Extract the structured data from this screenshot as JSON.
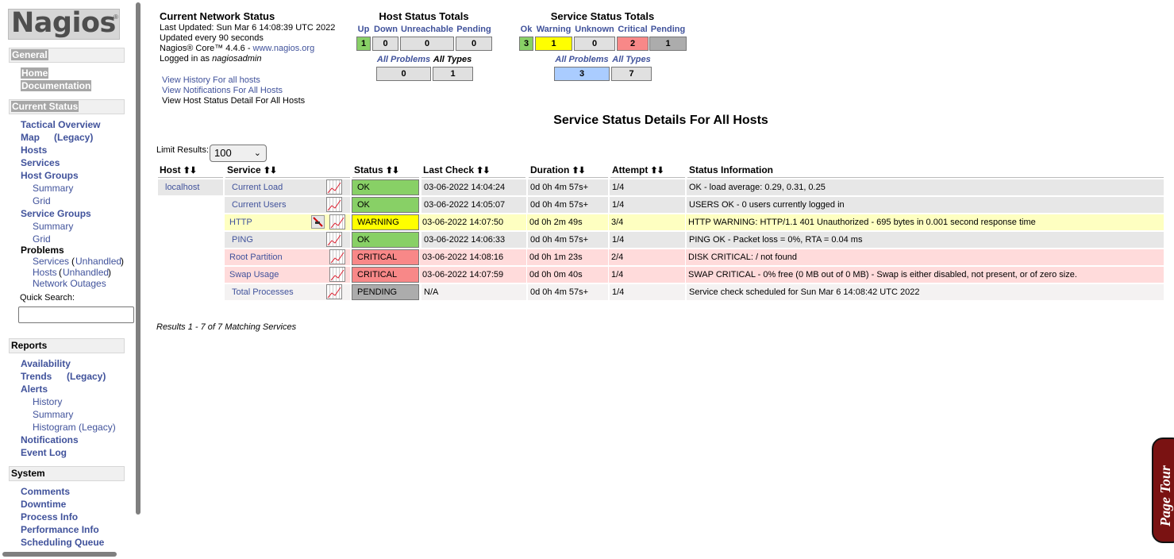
{
  "sidebar": {
    "logo": "Nagios",
    "logo_mark": "®",
    "general": {
      "heading": "General",
      "home": "Home",
      "documentation": "Documentation"
    },
    "current_status": {
      "heading": "Current Status",
      "tactical_overview": "Tactical Overview",
      "map": "Map",
      "map_legacy": "(Legacy)",
      "hosts": "Hosts",
      "services": "Services",
      "host_groups": "Host Groups",
      "hg_summary": "Summary",
      "hg_grid": "Grid",
      "service_groups": "Service Groups",
      "sg_summary": "Summary",
      "sg_grid": "Grid",
      "problems": "Problems",
      "prob_services": "Services",
      "prob_services_unhandled": "Unhandled",
      "prob_hosts": "Hosts",
      "prob_hosts_unhandled": "Unhandled",
      "network_outages": "Network Outages",
      "quick_search": "Quick Search:",
      "paren_open": "(",
      "paren_close": ")"
    },
    "reports": {
      "heading": "Reports",
      "availability": "Availability",
      "trends": "Trends",
      "trends_legacy": "(Legacy)",
      "alerts": "Alerts",
      "history": "History",
      "summary": "Summary",
      "histogram": "Histogram (Legacy)",
      "notifications": "Notifications",
      "event_log": "Event Log"
    },
    "system": {
      "heading": "System",
      "comments": "Comments",
      "downtime": "Downtime",
      "process_info": "Process Info",
      "performance_info": "Performance Info",
      "scheduling_queue": "Scheduling Queue"
    }
  },
  "network_status": {
    "title": "Current Network Status",
    "last_updated": "Last Updated: Sun Mar 6 14:08:39 UTC 2022",
    "update_interval": "Updated every 90 seconds",
    "version_prefix": "Nagios® Core™ 4.4.6 - ",
    "version_link": "www.nagios.org",
    "logged_prefix": "Logged in as ",
    "logged_user": "nagiosadmin",
    "links": [
      "View History For all hosts",
      "View Notifications For All Hosts",
      "View Host Status Detail For All Hosts"
    ]
  },
  "host_totals": {
    "title": "Host Status Totals",
    "headers": [
      "Up",
      "Down",
      "Unreachable",
      "Pending"
    ],
    "values": [
      "1",
      "0",
      "0",
      "0"
    ],
    "sub_headers": [
      "All Problems",
      "All Types"
    ],
    "sub_values": [
      "0",
      "1"
    ]
  },
  "service_totals": {
    "title": "Service Status Totals",
    "headers": [
      "Ok",
      "Warning",
      "Unknown",
      "Critical",
      "Pending"
    ],
    "values": [
      "3",
      "1",
      "0",
      "2",
      "1"
    ],
    "sub_headers": [
      "All Problems",
      "All Types"
    ],
    "sub_values": [
      "3",
      "7"
    ]
  },
  "colors": {
    "ok": "#88d066",
    "warning": "#ffff00",
    "critical": "#f88888",
    "pending": "#acacac",
    "row_even": "#f4f2f2",
    "row_odd": "#e7e7e7",
    "row_warning": "#feffc1",
    "row_critical": "#ffdbdb",
    "link": "#40529b"
  },
  "page_heading": "Service Status Details For All Hosts",
  "limit": {
    "label": "Limit Results:",
    "value": "100"
  },
  "table": {
    "headers": [
      "Host",
      "Service",
      "Status",
      "Last Check",
      "Duration",
      "Attempt",
      "Status Information"
    ],
    "rows": [
      {
        "host": "localhost",
        "service": "Current Load",
        "status": "OK",
        "last_check": "03-06-2022 14:04:24",
        "duration": "0d 0h 4m 57s+",
        "attempt": "1/4",
        "info": "OK - load average: 0.29, 0.31, 0.25"
      },
      {
        "host": "",
        "service": "Current Users",
        "status": "OK",
        "last_check": "03-06-2022 14:05:07",
        "duration": "0d 0h 4m 57s+",
        "attempt": "1/4",
        "info": "USERS OK - 0 users currently logged in"
      },
      {
        "host": "",
        "service": "HTTP",
        "status": "WARNING",
        "last_check": "03-06-2022 14:07:50",
        "duration": "0d 0h 2m 49s",
        "attempt": "3/4",
        "info": "HTTP WARNING: HTTP/1.1 401 Unauthorized - 695 bytes in 0.001 second response time"
      },
      {
        "host": "",
        "service": "PING",
        "status": "OK",
        "last_check": "03-06-2022 14:06:33",
        "duration": "0d 0h 4m 57s+",
        "attempt": "1/4",
        "info": "PING OK - Packet loss = 0%, RTA = 0.04 ms"
      },
      {
        "host": "",
        "service": "Root Partition",
        "status": "CRITICAL",
        "last_check": "03-06-2022 14:08:16",
        "duration": "0d 0h 1m 23s",
        "attempt": "2/4",
        "info": "DISK CRITICAL: / not found"
      },
      {
        "host": "",
        "service": "Swap Usage",
        "status": "CRITICAL",
        "last_check": "03-06-2022 14:07:59",
        "duration": "0d 0h 0m 40s",
        "attempt": "1/4",
        "info": "SWAP CRITICAL - 0% free (0 MB out of 0 MB) - Swap is either disabled, not present, or of zero size."
      },
      {
        "host": "",
        "service": "Total Processes",
        "status": "PENDING",
        "last_check": "N/A",
        "duration": "0d 0h 4m 57s+",
        "attempt": "1/4",
        "info": "Service check scheduled for Sun Mar 6 14:08:42 UTC 2022"
      }
    ],
    "results": "Results 1 - 7 of 7 Matching Services"
  },
  "page_tour": "Page Tour",
  "icons": {
    "sort": "sort-arrows-icon",
    "graph": "performance-graph-icon",
    "flapping": "notifications-disabled-icon",
    "select": "chevron-down-icon"
  }
}
